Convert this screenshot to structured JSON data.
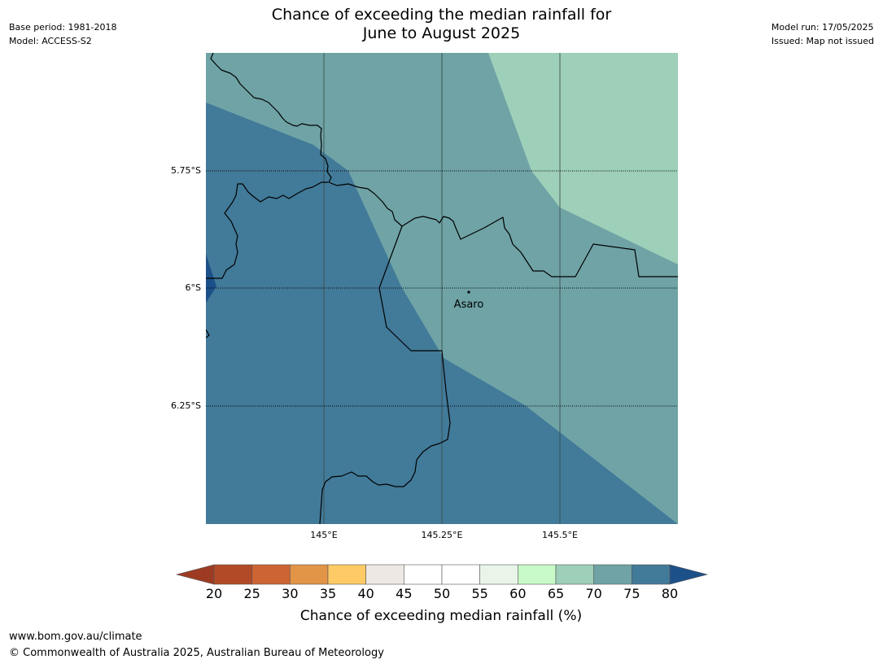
{
  "header": {
    "title_line1": "Chance of exceeding the median rainfall for",
    "title_line2": "June to August 2025",
    "base_period": "Base period: 1981-2018",
    "model": "Model: ACCESS-S2",
    "model_run": "Model run: 17/05/2025",
    "issued": "Issued: Map not issued"
  },
  "map": {
    "latitude_labels": [
      "5.75°S",
      "6°S",
      "6.25°S"
    ],
    "longitude_labels": [
      "145°E",
      "145.25°E",
      "145.5°E"
    ],
    "place": {
      "name": "Asaro"
    },
    "zone_colors": {
      "70_75": "#6fa3a6",
      "75_80": "#427a99",
      "65_70": "#9ecfb8",
      "above_80": "#1c5089"
    }
  },
  "colorbar": {
    "title": "Chance of exceeding median rainfall (%)",
    "ticks": [
      "20",
      "25",
      "30",
      "35",
      "40",
      "45",
      "50",
      "55",
      "60",
      "65",
      "70",
      "75",
      "80"
    ],
    "colors": [
      "#b24a27",
      "#cd6434",
      "#e29447",
      "#fdca65",
      "#ede8e3",
      "#ffffff",
      "#ffffff",
      "#e8f5e8",
      "#c8f9c8",
      "#9ecfb8",
      "#6fa3a6",
      "#427a99"
    ],
    "under_color": "#9c3b22",
    "over_color": "#1c5089"
  },
  "footer": {
    "url": "www.bom.gov.au/climate",
    "copyright": "© Commonwealth of Australia 2025, Australian Bureau of Meteorology"
  }
}
